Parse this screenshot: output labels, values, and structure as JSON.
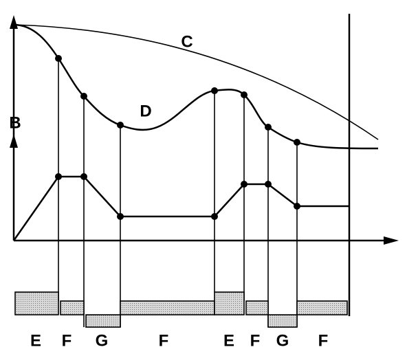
{
  "labels": {
    "axis": "B",
    "curve_c": "C",
    "curve_d": "D"
  },
  "segments": [
    "E",
    "F",
    "G",
    "F",
    "E",
    "F",
    "G",
    "F"
  ]
}
